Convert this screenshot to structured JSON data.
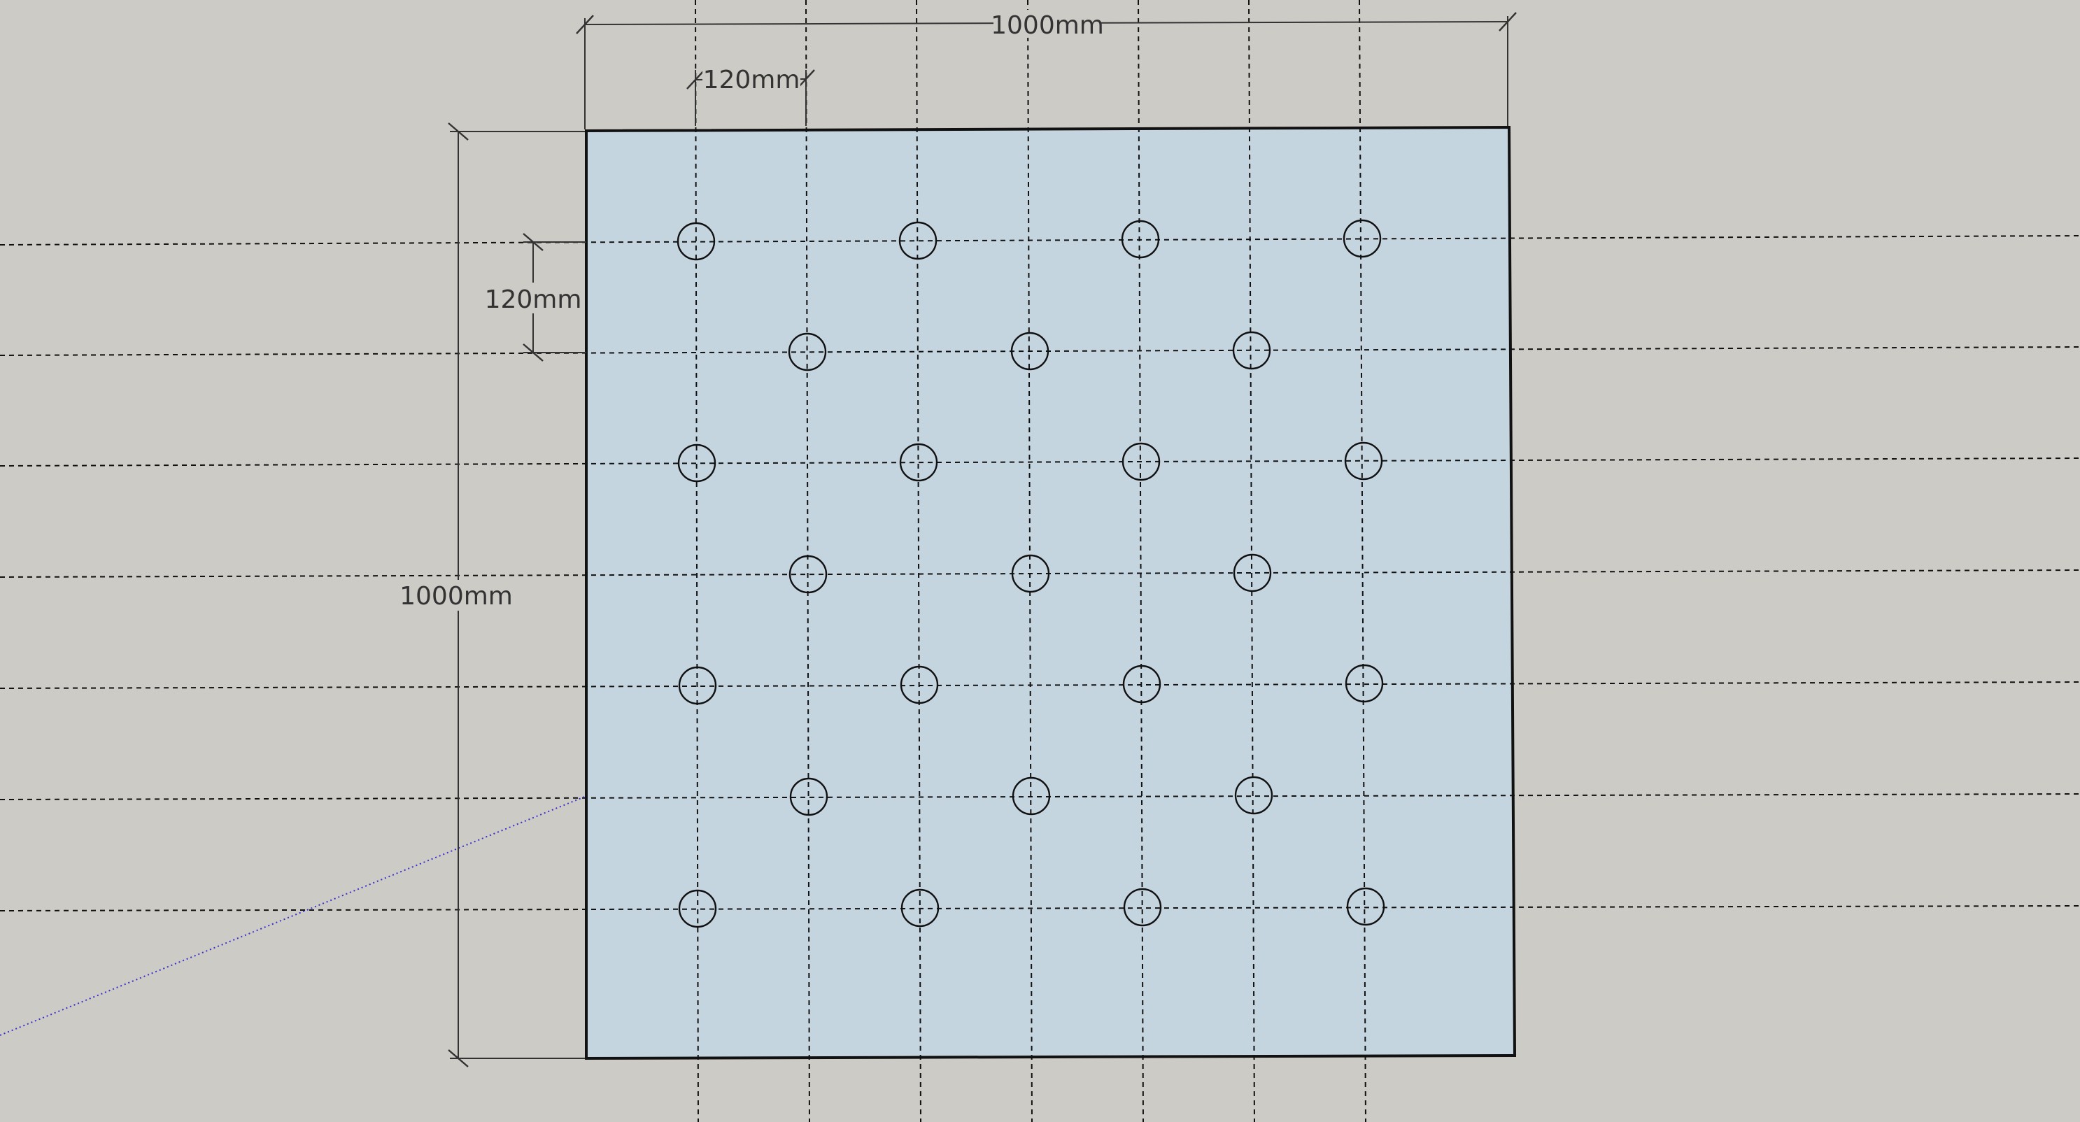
{
  "dimensions": {
    "overall_width": "1000mm",
    "overall_height": "1000mm",
    "hole_spacing_horizontal": "120mm",
    "hole_spacing_vertical": "120mm"
  },
  "colors": {
    "background": "#cccbc6",
    "panel_fill": "#c5d5e0",
    "lines": "#111111",
    "axis": "#3a2fd0"
  },
  "hole_pattern": {
    "rows": 7,
    "full_row_hole_count": 4,
    "offset_row_hole_count": 3,
    "total_holes": 25
  }
}
